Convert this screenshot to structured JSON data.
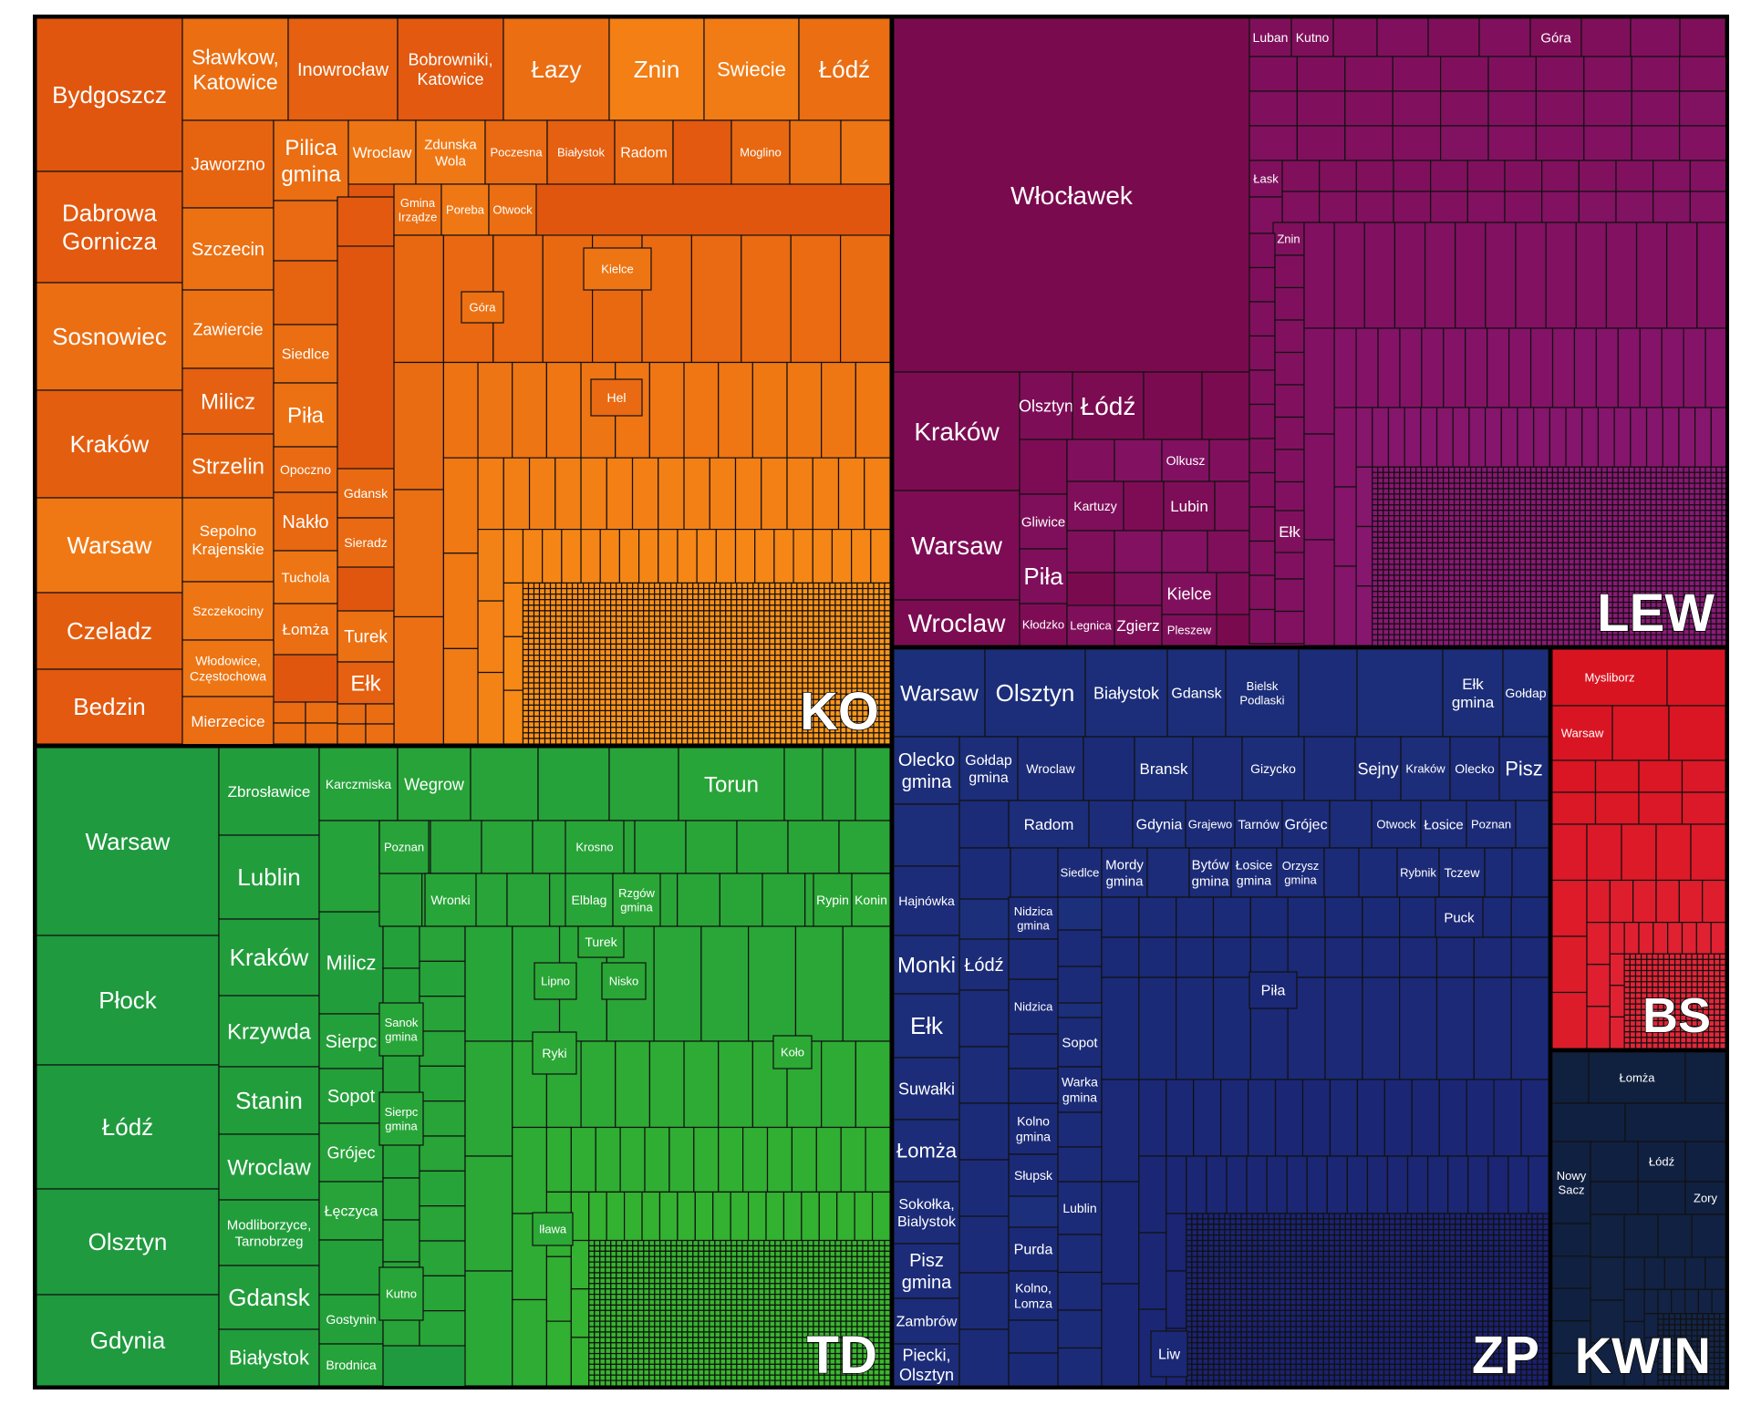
{
  "chart_data": {
    "type": "treemap",
    "title": "",
    "colors": {
      "KO": {
        "base": "#e0560e",
        "fine": "#ff9a1a"
      },
      "LEW": {
        "base": "#7a0a4e",
        "fine": "#8c1a7a"
      },
      "TD": {
        "base": "#1f9a3e",
        "fine": "#3ab82c"
      },
      "ZP": {
        "base": "#1c2f7a",
        "fine": "#1a2070"
      },
      "BS": {
        "base": "#d8121e",
        "fine": "#e4283c"
      },
      "KWIN": {
        "base": "#0f1f3e",
        "fine": "#14264a"
      }
    },
    "groups": [
      {
        "id": "KO",
        "label": "KO",
        "items": [
          {
            "label": "Bydgoszcz"
          },
          {
            "label": "Dabrowa Gornicza"
          },
          {
            "label": "Sosnowiec"
          },
          {
            "label": "Kraków"
          },
          {
            "label": "Warsaw"
          },
          {
            "label": "Czeladz"
          },
          {
            "label": "Bedzin"
          },
          {
            "label": "Sławkow, Katowice"
          },
          {
            "label": "Inowrocław"
          },
          {
            "label": "Bobrowniki, Katowice"
          },
          {
            "label": "Łazy"
          },
          {
            "label": "Znin"
          },
          {
            "label": "Swiecie"
          },
          {
            "label": "Łódź"
          },
          {
            "label": "Jaworzno"
          },
          {
            "label": "Pilica gmina"
          },
          {
            "label": "Wroclaw"
          },
          {
            "label": "Zdunska Wola"
          },
          {
            "label": "Poczesna"
          },
          {
            "label": "Białystok"
          },
          {
            "label": "Radom"
          },
          {
            "label": "Moglino"
          },
          {
            "label": "Szczecin"
          },
          {
            "label": "Gmina Irządze"
          },
          {
            "label": "Poreba"
          },
          {
            "label": "Otwock"
          },
          {
            "label": "Kielce"
          },
          {
            "label": "Zawiercie"
          },
          {
            "label": "Góra"
          },
          {
            "label": "Siedlce"
          },
          {
            "label": "Milicz"
          },
          {
            "label": "Piła"
          },
          {
            "label": "Hel"
          },
          {
            "label": "Strzelin"
          },
          {
            "label": "Opoczno"
          },
          {
            "label": "Sepolno Krajenskie"
          },
          {
            "label": "Nakło"
          },
          {
            "label": "Gdansk"
          },
          {
            "label": "Sieradz"
          },
          {
            "label": "Tuchola"
          },
          {
            "label": "Szczekociny"
          },
          {
            "label": "Łomża"
          },
          {
            "label": "Turek"
          },
          {
            "label": "Włodowice, Częstochowa"
          },
          {
            "label": "Ełk"
          },
          {
            "label": "Mierzecice"
          }
        ]
      },
      {
        "id": "LEW",
        "label": "LEW",
        "items": [
          {
            "label": "Włocławek"
          },
          {
            "label": "Kraków"
          },
          {
            "label": "Warsaw"
          },
          {
            "label": "Wroclaw"
          },
          {
            "label": "Olsztyn"
          },
          {
            "label": "Łódź"
          },
          {
            "label": "Olkusz"
          },
          {
            "label": "Gliwice"
          },
          {
            "label": "Kartuzy"
          },
          {
            "label": "Lubin"
          },
          {
            "label": "Piła"
          },
          {
            "label": "Kielce"
          },
          {
            "label": "Kłodzko"
          },
          {
            "label": "Legnica"
          },
          {
            "label": "Zgierz"
          },
          {
            "label": "Pleszew"
          },
          {
            "label": "Luban"
          },
          {
            "label": "Kutno"
          },
          {
            "label": "Góra"
          },
          {
            "label": "Łask"
          },
          {
            "label": "Znin"
          },
          {
            "label": "Ełk"
          }
        ]
      },
      {
        "id": "TD",
        "label": "TD",
        "items": [
          {
            "label": "Warsaw"
          },
          {
            "label": "Płock"
          },
          {
            "label": "Łódź"
          },
          {
            "label": "Olsztyn"
          },
          {
            "label": "Gdynia"
          },
          {
            "label": "Zbrosławice"
          },
          {
            "label": "Lublin"
          },
          {
            "label": "Kraków"
          },
          {
            "label": "Krzywda"
          },
          {
            "label": "Stanin"
          },
          {
            "label": "Wroclaw"
          },
          {
            "label": "Modliborzyce, Tarnobrzeg"
          },
          {
            "label": "Gdansk"
          },
          {
            "label": "Białystok"
          },
          {
            "label": "Karczmiska"
          },
          {
            "label": "Wegrow"
          },
          {
            "label": "Torun"
          },
          {
            "label": "Milicz"
          },
          {
            "label": "Sierpc"
          },
          {
            "label": "Sopot"
          },
          {
            "label": "Grójec"
          },
          {
            "label": "Łęczyca"
          },
          {
            "label": "Gostynin"
          },
          {
            "label": "Brodnica"
          },
          {
            "label": "Poznan"
          },
          {
            "label": "Krosno"
          },
          {
            "label": "Wronki"
          },
          {
            "label": "Elblag"
          },
          {
            "label": "Rzgów gmina"
          },
          {
            "label": "Rypin"
          },
          {
            "label": "Konin"
          },
          {
            "label": "Turek"
          },
          {
            "label": "Lipno"
          },
          {
            "label": "Nisko"
          },
          {
            "label": "Sanok gmina"
          },
          {
            "label": "Ryki"
          },
          {
            "label": "Koło"
          },
          {
            "label": "Sierpc gmina"
          },
          {
            "label": "Kutno"
          },
          {
            "label": "Iława"
          }
        ]
      },
      {
        "id": "ZP",
        "label": "ZP",
        "items": [
          {
            "label": "Warsaw"
          },
          {
            "label": "Olsztyn"
          },
          {
            "label": "Białystok"
          },
          {
            "label": "Gdansk"
          },
          {
            "label": "Bielsk Podlaski"
          },
          {
            "label": "Ełk gmina"
          },
          {
            "label": "Gołdap"
          },
          {
            "label": "Olecko gmina"
          },
          {
            "label": "Gołdap gmina"
          },
          {
            "label": "Wroclaw"
          },
          {
            "label": "Bransk"
          },
          {
            "label": "Gizycko"
          },
          {
            "label": "Sejny"
          },
          {
            "label": "Kraków"
          },
          {
            "label": "Olecko"
          },
          {
            "label": "Pisz"
          },
          {
            "label": "Radom"
          },
          {
            "label": "Gdynia"
          },
          {
            "label": "Grajewo"
          },
          {
            "label": "Tarnów"
          },
          {
            "label": "Grójec"
          },
          {
            "label": "Otwock"
          },
          {
            "label": "Łosice"
          },
          {
            "label": "Poznan"
          },
          {
            "label": "Siedlce"
          },
          {
            "label": "Mordy gmina"
          },
          {
            "label": "Bytów gmina"
          },
          {
            "label": "Łosice gmina"
          },
          {
            "label": "Orzysz gmina"
          },
          {
            "label": "Rybnik"
          },
          {
            "label": "Tczew"
          },
          {
            "label": "Hajnówka"
          },
          {
            "label": "Nidzica gmina"
          },
          {
            "label": "Puck"
          },
          {
            "label": "Monki"
          },
          {
            "label": "Łódź"
          },
          {
            "label": "Piła"
          },
          {
            "label": "Ełk"
          },
          {
            "label": "Nidzica"
          },
          {
            "label": "Suwałki"
          },
          {
            "label": "Sopot"
          },
          {
            "label": "Warka gmina"
          },
          {
            "label": "Łomża"
          },
          {
            "label": "Kolno gmina"
          },
          {
            "label": "Słupsk"
          },
          {
            "label": "Sokołka, Bialystok"
          },
          {
            "label": "Lublin"
          },
          {
            "label": "Pisz gmina"
          },
          {
            "label": "Purda"
          },
          {
            "label": "Zambrów"
          },
          {
            "label": "Kolno, Lomza"
          },
          {
            "label": "Piecki, Olsztyn"
          },
          {
            "label": "Liw"
          }
        ]
      },
      {
        "id": "BS",
        "label": "BS",
        "items": [
          {
            "label": "Mysliborz"
          },
          {
            "label": "Warsaw"
          }
        ]
      },
      {
        "id": "KWIN",
        "label": "KWIN",
        "items": [
          {
            "label": "Łomża"
          },
          {
            "label": "Nowy Sacz"
          },
          {
            "label": "Łódź"
          },
          {
            "label": "Zory"
          }
        ]
      }
    ]
  }
}
